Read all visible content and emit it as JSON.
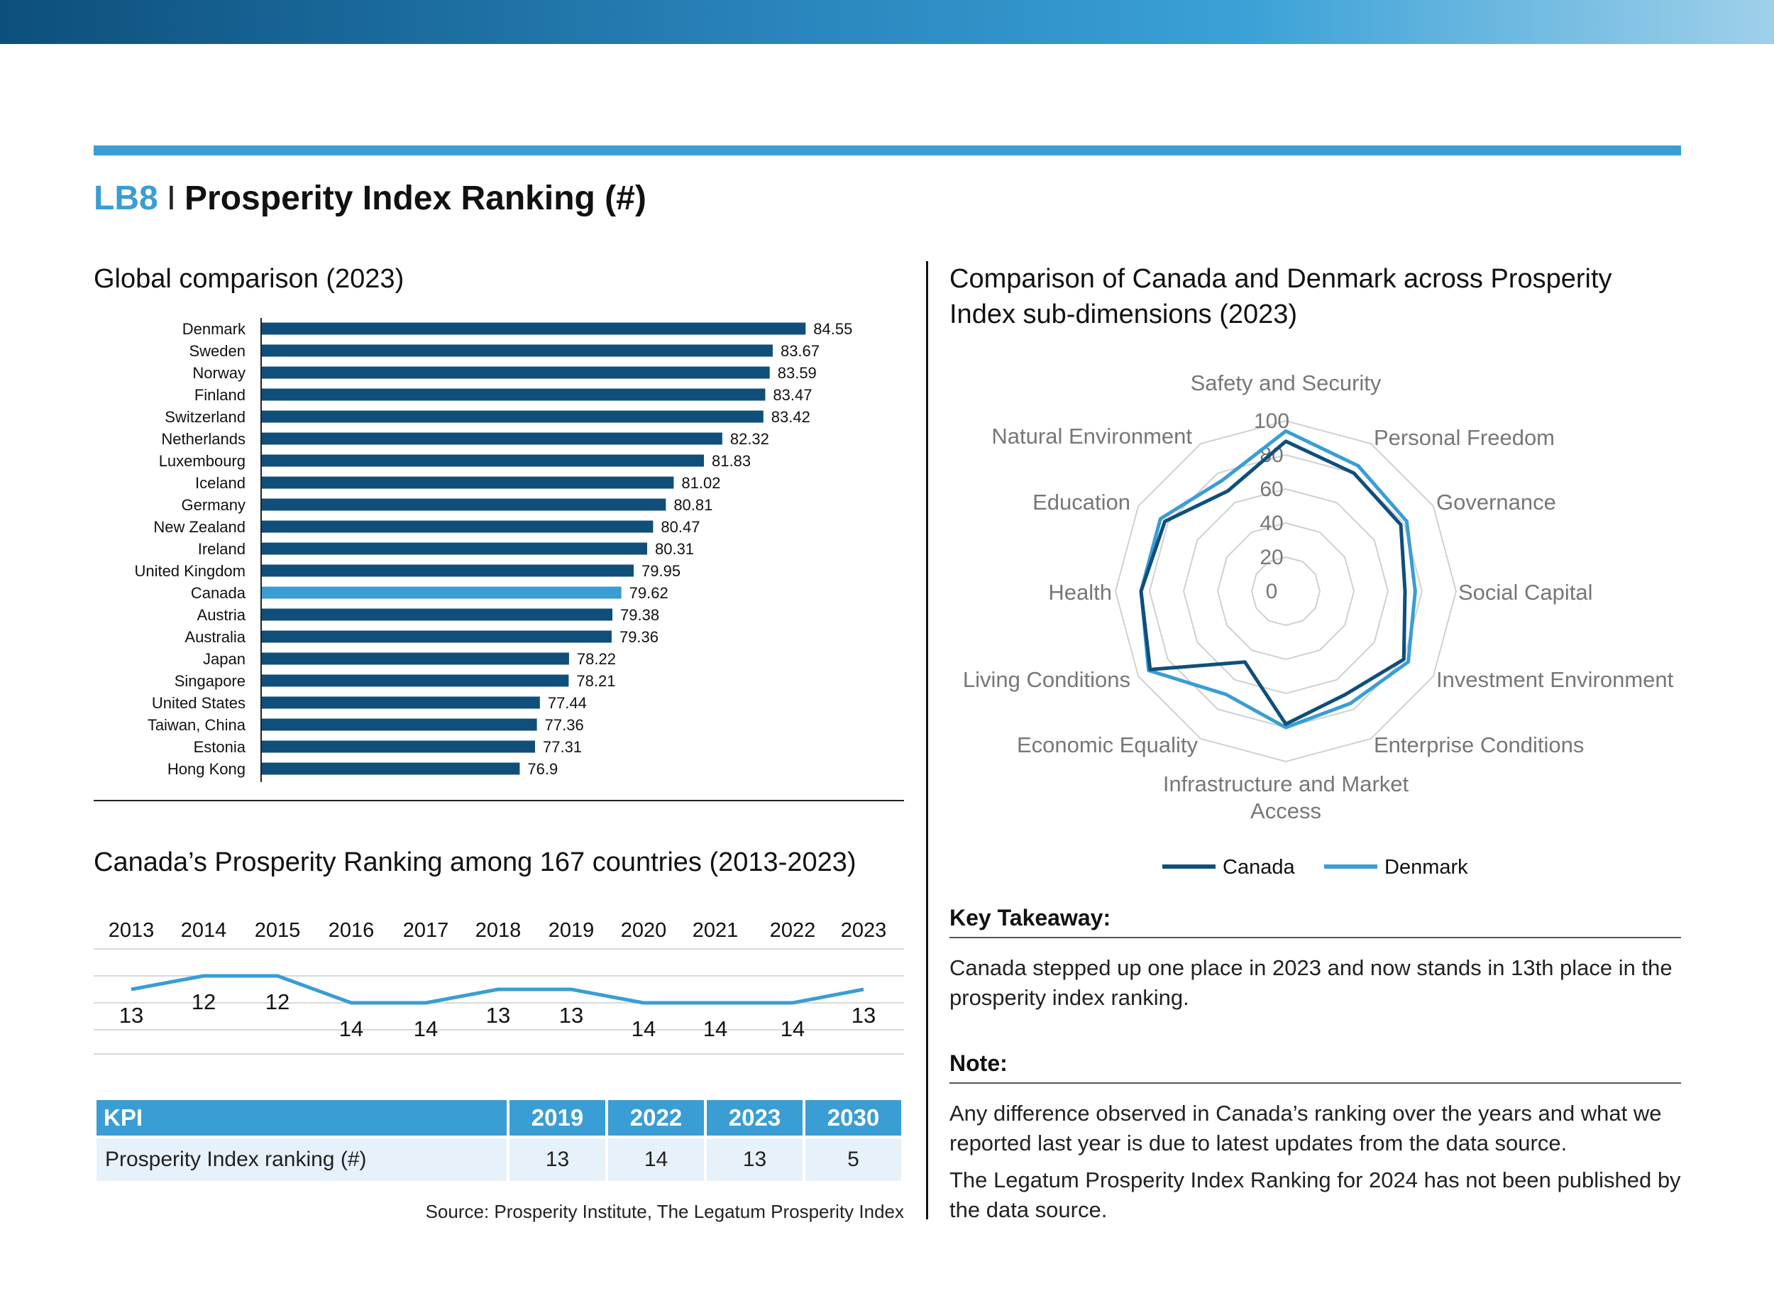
{
  "header": {
    "code": "LB8",
    "separator": "I",
    "title": "Prosperity Index Ranking (#)"
  },
  "global_comparison": {
    "title": "Global comparison (2023)",
    "highlight_color": "#3a9dd4",
    "bar_color": "#0f4f7a"
  },
  "radar": {
    "title_line1": "Comparison of Canada and Denmark across Prosperity",
    "title_line2": "Index sub-dimensions (2023)",
    "legend": [
      "Canada",
      "Denmark"
    ]
  },
  "ranking_trend": {
    "title": "Canada’s Prosperity Ranking among 167 countries (2013-2023)"
  },
  "kpi_table": {
    "headers": [
      "KPI",
      "2019",
      "2022",
      "2023",
      "2030"
    ],
    "rows": [
      [
        "Prosperity Index ranking (#)",
        "13",
        "14",
        "13",
        "5"
      ]
    ]
  },
  "source": "Source: Prosperity Institute, The Legatum Prosperity Index",
  "key_takeaway": {
    "heading": "Key Takeaway:",
    "text": "Canada stepped up one place in 2023 and now stands in 13th place in the prosperity index ranking."
  },
  "note": {
    "heading": "Note:",
    "text1": "Any difference observed in Canada’s ranking over the years and what we reported last year is due to latest updates from the data source.",
    "text2": "The Legatum Prosperity Index Ranking for 2024 has not been published by the data source."
  },
  "chart_data": [
    {
      "type": "bar",
      "orientation": "horizontal",
      "title": "Global comparison (2023)",
      "categories": [
        "Denmark",
        "Sweden",
        "Norway",
        "Finland",
        "Switzerland",
        "Netherlands",
        "Luxembourg",
        "Iceland",
        "Germany",
        "New Zealand",
        "Ireland",
        "United Kingdom",
        "Canada",
        "Austria",
        "Australia",
        "Japan",
        "Singapore",
        "United States",
        "Taiwan, China",
        "Estonia",
        "Hong Kong"
      ],
      "values": [
        84.55,
        83.67,
        83.59,
        83.47,
        83.42,
        82.32,
        81.83,
        81.02,
        80.81,
        80.47,
        80.31,
        79.95,
        79.62,
        79.38,
        79.36,
        78.22,
        78.21,
        77.44,
        77.36,
        77.31,
        76.9
      ],
      "labels": [
        "84.55",
        "83.67",
        "83.59",
        "83.47",
        "83.42",
        "82.32",
        "81.83",
        "81.02",
        "80.81",
        "80.47",
        "80.31",
        "79.95",
        "79.62",
        "79.38",
        "79.36",
        "78.22",
        "78.21",
        "77.44",
        "77.36",
        "77.31",
        "76.9"
      ],
      "highlight": "Canada"
    },
    {
      "type": "radar",
      "title": "Comparison of Canada and Denmark across Prosperity Index sub-dimensions (2023)",
      "axes": [
        "Safety and Security",
        "Personal Freedom",
        "Governance",
        "Social Capital",
        "Investment Environment",
        "Enterprise Conditions",
        "Infrastructure and Market Access",
        "Economic Equality",
        "Living Conditions",
        "Health",
        "Education",
        "Natural Environment"
      ],
      "ticks": [
        "0",
        "20",
        "40",
        "60",
        "80",
        "100"
      ],
      "range": [
        0,
        100
      ],
      "series": [
        {
          "name": "Canada",
          "color": "#0f4f7a",
          "values": [
            88,
            80,
            78,
            70,
            80,
            70,
            78,
            48,
            92,
            85,
            82,
            68
          ]
        },
        {
          "name": "Denmark",
          "color": "#3a9dd4",
          "values": [
            94,
            85,
            82,
            76,
            83,
            76,
            80,
            70,
            93,
            85,
            85,
            75
          ]
        }
      ],
      "legend": "bottom"
    },
    {
      "type": "line",
      "title": "Canada’s Prosperity Ranking among 167 countries (2013-2023)",
      "x": [
        "2013",
        "2014",
        "2015",
        "2016",
        "2017",
        "2018",
        "2019",
        "2020",
        "2021",
        "2022",
        "2023"
      ],
      "series": [
        {
          "name": "Canada",
          "color": "#3a9dd4",
          "values": [
            13,
            12,
            12,
            14,
            14,
            13,
            13,
            14,
            14,
            14,
            13
          ]
        }
      ],
      "labels": [
        "13",
        "12",
        "12",
        "14",
        "14",
        "13",
        "13",
        "14",
        "14",
        "14",
        "13"
      ],
      "ylim": [
        11,
        15
      ],
      "y_inverted": true,
      "grid": true
    }
  ]
}
